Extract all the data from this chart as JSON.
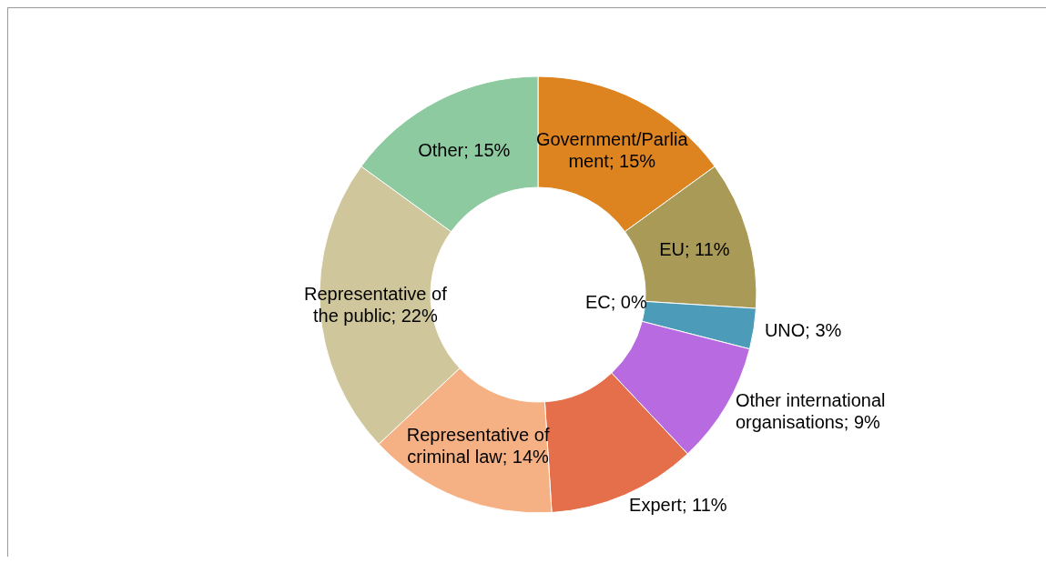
{
  "chart_data": {
    "type": "donut",
    "categories": [
      "Government/Parliament",
      "EU",
      "EC",
      "UNO",
      "Other international organisations",
      "Expert",
      "Representative of criminal law",
      "Representative of the public",
      "Other"
    ],
    "values": [
      15,
      11,
      0,
      3,
      9,
      11,
      14,
      22,
      15
    ],
    "value_labels": [
      "; 15%",
      "; 11%",
      "; 0%",
      "; 3%",
      "; 9%",
      "; 11%",
      "; 14%",
      "; 22%",
      "; 15%"
    ],
    "colors": [
      "#dd8420",
      "#a99a58",
      "#7f7f7f",
      "#4b9bb9",
      "#b86ae0",
      "#e66f4b",
      "#f5b184",
      "#cfc69c",
      "#8ecaa0"
    ],
    "legend": false
  }
}
